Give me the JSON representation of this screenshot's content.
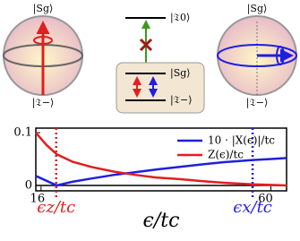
{
  "diagram": {
    "left_sphere": {
      "top": "|Sg⟩",
      "bottom": "|𝔗−⟩"
    },
    "right_sphere": {
      "top": "|Sg⟩",
      "bottom": "|𝔗−⟩"
    },
    "levels": {
      "upper": "|𝔗0⟩",
      "middle": "|Sg⟩",
      "lower": "|𝔗−⟩"
    }
  },
  "chart_data": {
    "type": "line",
    "x_label": "ϵ/tc",
    "x": [
      15,
      17,
      19,
      22,
      25.6,
      30,
      34,
      38,
      42.4,
      47,
      51,
      56.5,
      60,
      63
    ],
    "series": [
      {
        "name": "10 · |X(ϵ)|/tc",
        "color": "#1f1fe0",
        "values": [
          0.018,
          0.009,
          0.0,
          0.007,
          0.013,
          0.02,
          0.025,
          0.03,
          0.035,
          0.04,
          0.044,
          0.048,
          0.05,
          0.052
        ]
      },
      {
        "name": "Z(ϵ)/tc",
        "color": "#e01f1f",
        "values": [
          0.1,
          0.077,
          0.059,
          0.045,
          0.035,
          0.026,
          0.02,
          0.015,
          0.012,
          0.008,
          0.005,
          0.002,
          0.001,
          0.0
        ]
      }
    ],
    "markers": [
      {
        "x": 18.9,
        "label": "ϵz/tc",
        "color": "#e01f1f"
      },
      {
        "x": 56.5,
        "label": "ϵx/tc",
        "color": "#1f1fe0"
      }
    ],
    "xlim": [
      15,
      63
    ],
    "ylim": [
      -0.0102,
      0.1085
    ],
    "xticks": [
      16,
      60
    ],
    "yticks": [
      0,
      0.1
    ]
  }
}
